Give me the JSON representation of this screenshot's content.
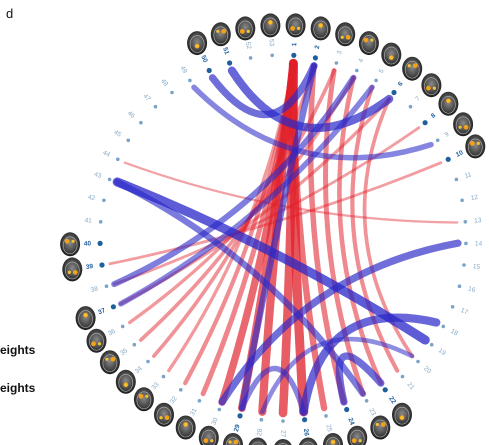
{
  "panel_letter": "d",
  "legend": {
    "item1": "eights",
    "item2": "eights"
  },
  "colors": {
    "positive": "#e0202a",
    "negative": "#2a28c8",
    "node": "#7aa3c8",
    "label": "#86a8c5",
    "label_highlight": "#1f5f9e"
  },
  "node_labels": [
    "1",
    "2",
    "3",
    "4",
    "5",
    "6",
    "7",
    "8",
    "9",
    "10",
    "11",
    "12",
    "13",
    "14",
    "15",
    "16",
    "17",
    "18",
    "19",
    "20",
    "21",
    "22",
    "23",
    "24",
    "25",
    "26",
    "27",
    "28",
    "29",
    "30",
    "31",
    "32",
    "33",
    "34",
    "35",
    "36",
    "37",
    "38",
    "39",
    "40",
    "41",
    "42",
    "43",
    "44",
    "45",
    "46",
    "47",
    "48",
    "49",
    "50",
    "51",
    "52",
    "53"
  ],
  "highlight_labels": [
    "1",
    "2",
    "6",
    "8",
    "10",
    "22",
    "24",
    "26",
    "29",
    "37",
    "39",
    "40",
    "50",
    "51"
  ],
  "chart_data": {
    "type": "chord",
    "nodes": 53,
    "connections": [
      {
        "from": "26",
        "to": "1",
        "weight": 0.9,
        "sign": "positive"
      },
      {
        "from": "27",
        "to": "1",
        "weight": 0.85,
        "sign": "positive"
      },
      {
        "from": "28",
        "to": "1",
        "weight": 0.8,
        "sign": "positive"
      },
      {
        "from": "29",
        "to": "1",
        "weight": 0.75,
        "sign": "positive"
      },
      {
        "from": "30",
        "to": "1",
        "weight": 0.7,
        "sign": "positive"
      },
      {
        "from": "25",
        "to": "1",
        "weight": 0.6,
        "sign": "positive"
      },
      {
        "from": "31",
        "to": "1",
        "weight": 0.45,
        "sign": "positive"
      },
      {
        "from": "32",
        "to": "1",
        "weight": 0.35,
        "sign": "positive"
      },
      {
        "from": "33",
        "to": "1",
        "weight": 0.25,
        "sign": "positive"
      },
      {
        "from": "24",
        "to": "2",
        "weight": 0.5,
        "sign": "positive"
      },
      {
        "from": "23",
        "to": "3",
        "weight": 0.45,
        "sign": "positive"
      },
      {
        "from": "22",
        "to": "4",
        "weight": 0.4,
        "sign": "positive"
      },
      {
        "from": "21",
        "to": "5",
        "weight": 0.35,
        "sign": "positive"
      },
      {
        "from": "20",
        "to": "6",
        "weight": 0.3,
        "sign": "positive"
      },
      {
        "from": "34",
        "to": "2",
        "weight": 0.3,
        "sign": "positive"
      },
      {
        "from": "35",
        "to": "3",
        "weight": 0.3,
        "sign": "positive"
      },
      {
        "from": "36",
        "to": "4",
        "weight": 0.25,
        "sign": "positive"
      },
      {
        "from": "37",
        "to": "6",
        "weight": 0.25,
        "sign": "positive"
      },
      {
        "from": "38",
        "to": "8",
        "weight": 0.2,
        "sign": "positive"
      },
      {
        "from": "39",
        "to": "10",
        "weight": 0.2,
        "sign": "positive"
      },
      {
        "from": "44",
        "to": "13",
        "weight": 0.15,
        "sign": "positive"
      },
      {
        "from": "38",
        "to": "4",
        "weight": 0.55,
        "sign": "negative"
      },
      {
        "from": "37",
        "to": "5",
        "weight": 0.5,
        "sign": "negative"
      },
      {
        "from": "29",
        "to": "2",
        "weight": 0.6,
        "sign": "negative"
      },
      {
        "from": "51",
        "to": "6",
        "weight": 0.8,
        "sign": "negative"
      },
      {
        "from": "50",
        "to": "2",
        "weight": 0.7,
        "sign": "negative"
      },
      {
        "from": "49",
        "to": "9",
        "weight": 0.5,
        "sign": "negative"
      },
      {
        "from": "14",
        "to": "30",
        "weight": 0.7,
        "sign": "negative"
      },
      {
        "from": "43",
        "to": "19",
        "weight": 0.9,
        "sign": "negative"
      },
      {
        "from": "43",
        "to": "23",
        "weight": 0.6,
        "sign": "negative"
      },
      {
        "from": "26",
        "to": "18",
        "weight": 0.8,
        "sign": "negative"
      },
      {
        "from": "24",
        "to": "22",
        "weight": 0.7,
        "sign": "negative"
      },
      {
        "from": "29",
        "to": "26",
        "weight": 0.5,
        "sign": "negative"
      },
      {
        "from": "28",
        "to": "20",
        "weight": 0.4,
        "sign": "negative"
      }
    ]
  }
}
